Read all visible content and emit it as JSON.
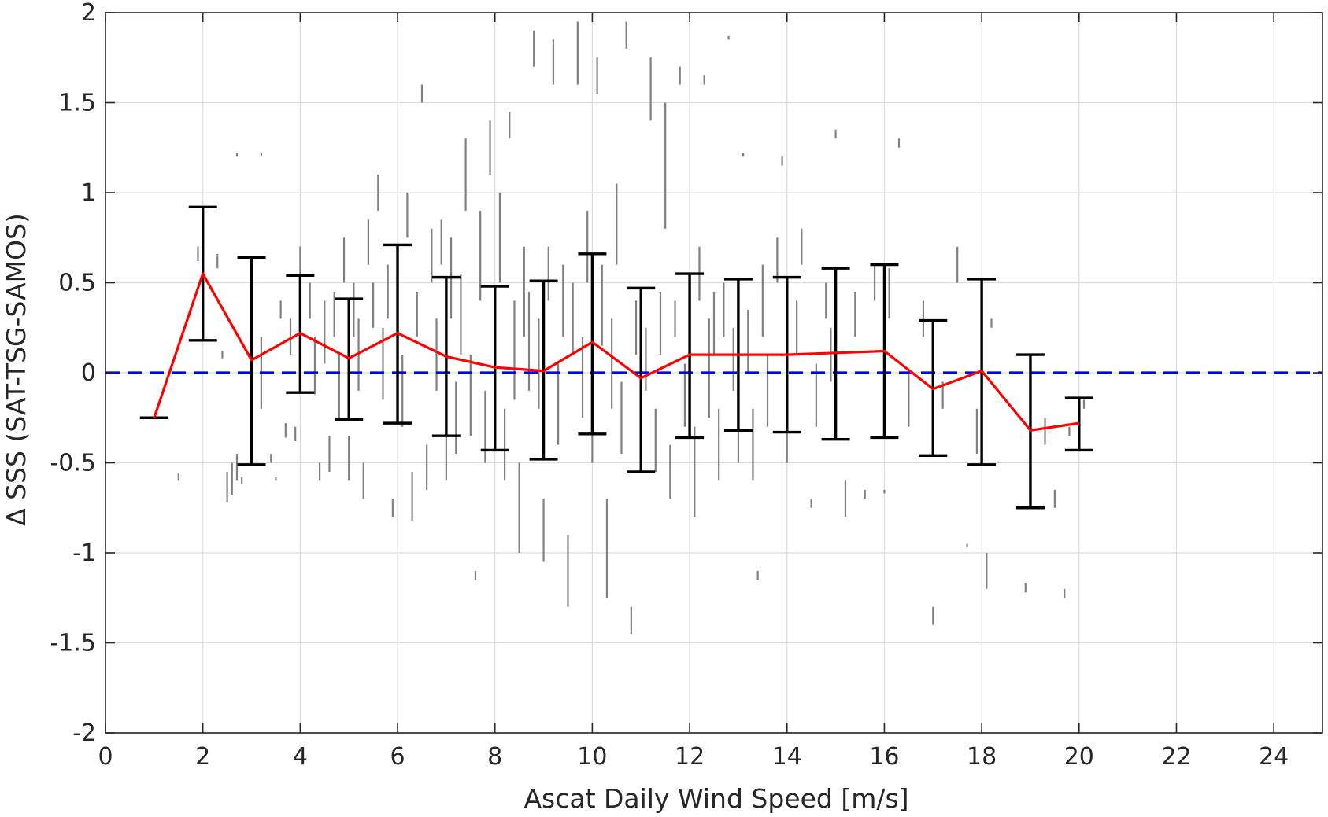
{
  "chart_data": {
    "type": "scatter",
    "xlabel": "Ascat Daily Wind Speed [m/s]",
    "ylabel": "Δ SSS (SAT-TSG-SAMOS)",
    "xlim": [
      0,
      25
    ],
    "ylim": [
      -2,
      2
    ],
    "xticks": [
      0,
      2,
      4,
      6,
      8,
      10,
      12,
      14,
      16,
      18,
      20,
      22,
      24
    ],
    "yticks": [
      2,
      1.5,
      1,
      0.5,
      0,
      -0.5,
      -1,
      -1.5,
      -2
    ],
    "ytick_labels": [
      "2",
      "1.5",
      "1",
      "0.5",
      "0",
      "-0.5",
      "-1",
      "-1.5",
      "-2"
    ],
    "grid": true,
    "colors": {
      "scatter": "#808080",
      "mean_line": "#ff0000",
      "error_bars": "#000000",
      "zero_line": "#0000ff",
      "grid": "#dcdcdc",
      "axes": "#262626"
    },
    "zero_line": {
      "y": 0,
      "style": "dashed"
    },
    "bin_stats": {
      "x": [
        1,
        2,
        3,
        4,
        5,
        6,
        7,
        8,
        9,
        10,
        11,
        12,
        13,
        14,
        15,
        16,
        17,
        18,
        19,
        20
      ],
      "mean": [
        -0.25,
        0.55,
        0.07,
        0.22,
        0.08,
        0.22,
        0.09,
        0.03,
        0.01,
        0.17,
        -0.03,
        0.1,
        0.1,
        0.1,
        0.11,
        0.12,
        -0.09,
        0.01,
        -0.32,
        -0.28
      ],
      "upper": [
        -0.25,
        0.92,
        0.64,
        0.54,
        0.41,
        0.71,
        0.53,
        0.48,
        0.51,
        0.66,
        0.47,
        0.55,
        0.52,
        0.53,
        0.58,
        0.6,
        0.29,
        0.52,
        0.1,
        -0.14
      ],
      "lower": [
        -0.25,
        0.18,
        -0.51,
        -0.11,
        -0.26,
        -0.28,
        -0.35,
        -0.43,
        -0.48,
        -0.34,
        -0.55,
        -0.36,
        -0.32,
        -0.33,
        -0.37,
        -0.36,
        -0.46,
        -0.51,
        -0.75,
        -0.43
      ]
    },
    "scatter_segments": [
      [
        1.5,
        -0.6,
        -0.56
      ],
      [
        1.9,
        0.62,
        0.7
      ],
      [
        2.3,
        0.58,
        0.66
      ],
      [
        2.4,
        0.08,
        0.12
      ],
      [
        2.5,
        -0.55,
        -0.72
      ],
      [
        2.6,
        -0.5,
        -0.68
      ],
      [
        2.7,
        -0.45,
        -0.6
      ],
      [
        2.8,
        -0.58,
        -0.62
      ],
      [
        2.7,
        1.2,
        1.22
      ],
      [
        3.2,
        1.2,
        1.22
      ],
      [
        3.0,
        -0.1,
        0.2
      ],
      [
        3.2,
        -0.2,
        0.2
      ],
      [
        3.4,
        -0.45,
        -0.5
      ],
      [
        3.5,
        -0.58,
        -0.6
      ],
      [
        3.6,
        0.3,
        0.4
      ],
      [
        3.7,
        -0.28,
        -0.36
      ],
      [
        3.8,
        0.1,
        0.3
      ],
      [
        3.9,
        -0.3,
        -0.38
      ],
      [
        4.0,
        0.55,
        0.7
      ],
      [
        4.2,
        0.3,
        0.5
      ],
      [
        4.3,
        -0.12,
        0.2
      ],
      [
        4.4,
        -0.5,
        -0.6
      ],
      [
        4.5,
        0.05,
        0.4
      ],
      [
        4.6,
        -0.35,
        -0.55
      ],
      [
        4.7,
        0.2,
        0.45
      ],
      [
        4.8,
        -0.25,
        0.1
      ],
      [
        4.9,
        0.5,
        0.75
      ],
      [
        5.0,
        -0.35,
        -0.6
      ],
      [
        5.1,
        0.2,
        0.5
      ],
      [
        5.2,
        -0.1,
        0.3
      ],
      [
        5.3,
        -0.5,
        -0.7
      ],
      [
        5.4,
        0.6,
        0.85
      ],
      [
        5.5,
        0.25,
        0.5
      ],
      [
        5.6,
        0.9,
        1.1
      ],
      [
        5.7,
        -0.15,
        0.25
      ],
      [
        5.8,
        0.3,
        0.6
      ],
      [
        5.9,
        -0.7,
        -0.8
      ],
      [
        6.0,
        0.4,
        0.7
      ],
      [
        6.1,
        -0.3,
        0.1
      ],
      [
        6.2,
        0.75,
        1.0
      ],
      [
        6.3,
        -0.55,
        -0.82
      ],
      [
        6.4,
        0.2,
        0.45
      ],
      [
        6.5,
        1.5,
        1.6
      ],
      [
        6.6,
        -0.4,
        -0.65
      ],
      [
        6.7,
        0.5,
        0.8
      ],
      [
        6.8,
        -0.1,
        0.3
      ],
      [
        6.9,
        0.6,
        0.85
      ],
      [
        7.0,
        -0.6,
        -0.2
      ],
      [
        7.1,
        0.3,
        0.75
      ],
      [
        7.2,
        -0.45,
        -0.05
      ],
      [
        7.3,
        0.1,
        0.55
      ],
      [
        7.4,
        0.9,
        1.3
      ],
      [
        7.5,
        -0.35,
        0.1
      ],
      [
        7.6,
        -1.1,
        -1.15
      ],
      [
        7.7,
        0.4,
        0.9
      ],
      [
        7.8,
        -0.5,
        -0.1
      ],
      [
        7.9,
        1.1,
        1.4
      ],
      [
        8.0,
        -0.3,
        0.2
      ],
      [
        8.1,
        0.5,
        1.0
      ],
      [
        8.2,
        -0.6,
        -0.2
      ],
      [
        8.3,
        1.3,
        1.45
      ],
      [
        8.4,
        -0.15,
        0.4
      ],
      [
        8.5,
        -0.5,
        -1.0
      ],
      [
        8.6,
        0.2,
        0.7
      ],
      [
        8.7,
        -0.1,
        0.45
      ],
      [
        8.8,
        1.7,
        1.9
      ],
      [
        8.9,
        -0.2,
        0.3
      ],
      [
        9.0,
        -0.7,
        -1.05
      ],
      [
        9.1,
        0.4,
        0.7
      ],
      [
        9.2,
        1.6,
        1.85
      ],
      [
        9.3,
        -0.4,
        0.05
      ],
      [
        9.4,
        0.2,
        0.6
      ],
      [
        9.5,
        -0.9,
        -1.3
      ],
      [
        9.6,
        0.1,
        0.5
      ],
      [
        9.7,
        1.6,
        1.95
      ],
      [
        9.8,
        -0.25,
        0.2
      ],
      [
        9.9,
        0.5,
        0.9
      ],
      [
        10.0,
        -0.5,
        -0.1
      ],
      [
        10.1,
        1.55,
        1.75
      ],
      [
        10.2,
        0.15,
        0.6
      ],
      [
        10.3,
        -0.7,
        -1.25
      ],
      [
        10.4,
        -0.2,
        0.3
      ],
      [
        10.5,
        0.6,
        1.05
      ],
      [
        10.6,
        -0.45,
        -0.05
      ],
      [
        10.7,
        1.8,
        1.95
      ],
      [
        10.8,
        -1.3,
        -1.45
      ],
      [
        10.9,
        0.1,
        0.4
      ],
      [
        11.0,
        -0.4,
        0.3
      ],
      [
        11.1,
        -0.1,
        0.25
      ],
      [
        11.2,
        1.4,
        1.75
      ],
      [
        11.3,
        -0.55,
        -0.2
      ],
      [
        11.4,
        0.1,
        0.45
      ],
      [
        11.5,
        0.8,
        1.5
      ],
      [
        11.6,
        -0.7,
        -0.4
      ],
      [
        11.7,
        0.2,
        0.4
      ],
      [
        11.8,
        1.6,
        1.7
      ],
      [
        11.9,
        -0.3,
        0.05
      ],
      [
        12.0,
        0.2,
        0.5
      ],
      [
        12.1,
        -0.8,
        -0.3
      ],
      [
        12.2,
        0.4,
        0.7
      ],
      [
        12.3,
        1.6,
        1.65
      ],
      [
        12.4,
        -0.25,
        0.3
      ],
      [
        12.5,
        0.1,
        0.45
      ],
      [
        12.6,
        -0.6,
        -0.2
      ],
      [
        12.7,
        0.2,
        0.5
      ],
      [
        12.8,
        1.85,
        1.87
      ],
      [
        12.9,
        -0.1,
        0.25
      ],
      [
        13.0,
        -0.5,
        -0.3
      ],
      [
        13.1,
        1.2,
        1.22
      ],
      [
        13.2,
        0.0,
        0.35
      ],
      [
        13.3,
        -0.6,
        -0.2
      ],
      [
        13.4,
        -1.1,
        -1.15
      ],
      [
        13.5,
        0.2,
        0.6
      ],
      [
        13.6,
        -0.3,
        0.1
      ],
      [
        13.8,
        0.5,
        0.75
      ],
      [
        13.9,
        1.15,
        1.2
      ],
      [
        14.0,
        -0.5,
        -0.2
      ],
      [
        14.2,
        0.1,
        0.4
      ],
      [
        14.3,
        0.6,
        0.8
      ],
      [
        14.5,
        -0.7,
        -0.75
      ],
      [
        14.6,
        -0.3,
        0.05
      ],
      [
        14.8,
        0.3,
        0.5
      ],
      [
        14.9,
        -0.05,
        0.25
      ],
      [
        15.0,
        1.3,
        1.35
      ],
      [
        15.2,
        -0.8,
        -0.6
      ],
      [
        15.4,
        0.2,
        0.45
      ],
      [
        15.6,
        -0.65,
        -0.7
      ],
      [
        15.8,
        0.4,
        0.6
      ],
      [
        16.0,
        -0.65,
        -0.67
      ],
      [
        16.1,
        0.3,
        0.58
      ],
      [
        16.3,
        1.25,
        1.3
      ],
      [
        16.5,
        -0.3,
        0.0
      ],
      [
        16.8,
        0.2,
        0.4
      ],
      [
        17.0,
        -1.3,
        -1.4
      ],
      [
        17.2,
        -0.2,
        -0.05
      ],
      [
        17.5,
        0.5,
        0.7
      ],
      [
        17.7,
        -0.95,
        -0.97
      ],
      [
        17.9,
        -0.2,
        -0.45
      ],
      [
        18.1,
        -1.0,
        -1.2
      ],
      [
        18.2,
        0.25,
        0.3
      ],
      [
        18.9,
        -1.17,
        -1.22
      ],
      [
        19.3,
        -0.25,
        -0.4
      ],
      [
        19.5,
        -0.65,
        -0.75
      ],
      [
        19.7,
        -1.2,
        -1.25
      ],
      [
        19.8,
        -0.3,
        -0.35
      ],
      [
        20.1,
        -0.15,
        -0.2
      ]
    ]
  }
}
